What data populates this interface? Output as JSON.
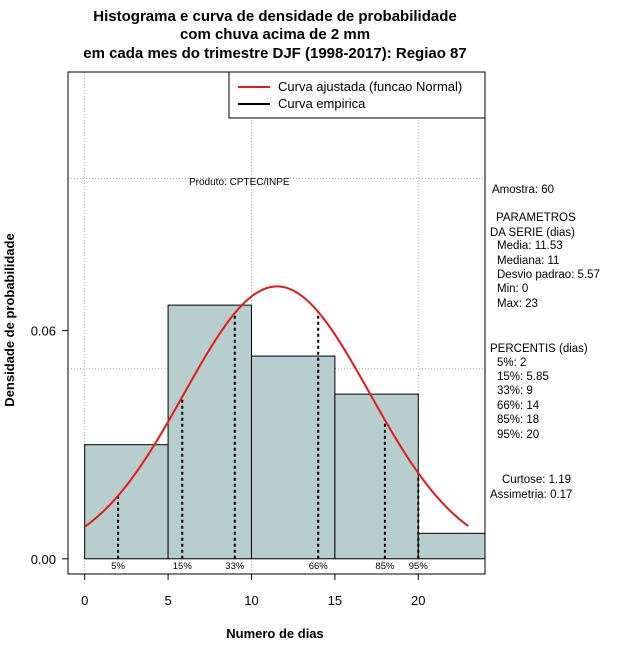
{
  "chart_data": {
    "type": "bar",
    "title_lines": [
      "Histograma e curva de densidade de probabilidade",
      "com chuva acima de 2 mm",
      "em cada mes do trimestre DJF (1998-2017): Regiao 87"
    ],
    "xlabel": "Numero de dias",
    "ylabel": "Densidade de probabilidade",
    "xlim": [
      -1,
      24
    ],
    "ylim": [
      -0.004,
      0.128
    ],
    "x_ticks": [
      0,
      5,
      10,
      15,
      20
    ],
    "x_tick_labels": [
      "0",
      "5",
      "10",
      "15",
      "20"
    ],
    "y_ticks": [
      0.0,
      0.06
    ],
    "y_tick_labels": [
      "0.00",
      "0.06"
    ],
    "grid_x": [
      0,
      10,
      20
    ],
    "grid_y": [
      0.05,
      0.1
    ],
    "histogram": {
      "bins": [
        0,
        5,
        10,
        15,
        20,
        24
      ],
      "densities": [
        0.03,
        0.0667,
        0.0533,
        0.0433,
        0.0067
      ],
      "fill": "#b8cdcd"
    },
    "normal_curve": {
      "name": "Curva ajustada (funcao Normal)",
      "mean": 11.53,
      "sd": 5.57,
      "x_range": [
        0,
        23
      ],
      "color": "#e31a1c"
    },
    "empirical_curve": {
      "name": "Curva empirica",
      "color": "#000000"
    },
    "percentiles": [
      {
        "label": "5%",
        "value": 2
      },
      {
        "label": "15%",
        "value": 5.85
      },
      {
        "label": "33%",
        "value": 9
      },
      {
        "label": "66%",
        "value": 14
      },
      {
        "label": "85%",
        "value": 18
      },
      {
        "label": "95%",
        "value": 20
      }
    ],
    "legend": {
      "position": "top-right",
      "entries": [
        "Curva ajustada (funcao Normal)",
        "Curva empirica"
      ]
    }
  },
  "credit": "Produto: CPTEC/INPE",
  "side_panel": {
    "amostra": "Amostra: 60",
    "param_title1": "PARAMETROS",
    "param_title2": "DA SERIE (dias)",
    "media": "Media: 11.53",
    "mediana": "Mediana: 11",
    "desvio": "Desvio padrao: 5.57",
    "min": "Min: 0",
    "max": "Max: 23",
    "percentis_title": "PERCENTIS (dias)",
    "p5": "5%: 2",
    "p15": "15%: 5.85",
    "p33": "33%: 9",
    "p66": "66%: 14",
    "p85": "85%: 18",
    "p95": "95%: 20",
    "curtose": "Curtose: 1.19",
    "assimetria": "Assimetria: 0.17"
  }
}
